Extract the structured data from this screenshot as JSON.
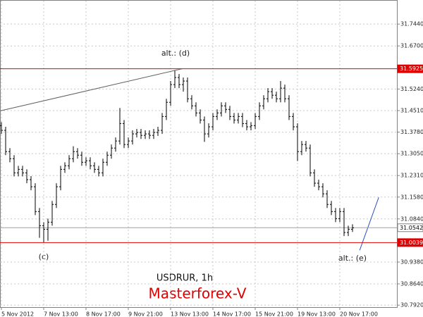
{
  "chart_data": {
    "type": "ohlc",
    "title": "USDRUR, 1h",
    "subtitle": "Masterforex-V",
    "color": "#000000",
    "grid": true,
    "ylim": [
      30.79,
      31.816
    ],
    "yticks": [
      {
        "value": 31.744,
        "label": "31.7440"
      },
      {
        "value": 31.67,
        "label": "31.6700"
      },
      {
        "value": 31.524,
        "label": "31.5240"
      },
      {
        "value": 31.451,
        "label": "31.4510"
      },
      {
        "value": 31.378,
        "label": "31.3780"
      },
      {
        "value": 31.305,
        "label": "31.3050"
      },
      {
        "value": 31.231,
        "label": "31.2310"
      },
      {
        "value": 31.158,
        "label": "31.1580"
      },
      {
        "value": 31.084,
        "label": "31.0840"
      },
      {
        "value": 30.938,
        "label": "30.9380"
      },
      {
        "value": 30.864,
        "label": "30.8640"
      },
      {
        "value": 30.792,
        "label": "30.7920"
      }
    ],
    "levels": [
      {
        "value": 31.5925,
        "color": "#e00000"
      },
      {
        "value": 31.0039,
        "color": "#e00000"
      },
      {
        "value": 31.0542,
        "color": "#a0a0a0"
      }
    ],
    "trendlines": [
      {
        "color": "#606060",
        "points": [
          [
            -0.3,
            31.45
          ],
          [
            42.7,
            31.5925
          ]
        ]
      },
      {
        "color": "#3050c0",
        "points": [
          [
            84.7,
            30.978
          ],
          [
            89.2,
            31.157
          ]
        ]
      }
    ],
    "annotations": [
      "alt.: (d)",
      "(c)",
      "alt.: (e)"
    ],
    "categories": [
      "5 Nov 2012",
      null,
      null,
      null,
      null,
      null,
      null,
      null,
      null,
      null,
      "7 Nov 13:00",
      null,
      null,
      null,
      null,
      null,
      null,
      null,
      null,
      null,
      "8 Nov 17:00",
      null,
      null,
      null,
      null,
      null,
      null,
      null,
      null,
      null,
      "9 Nov 21:00",
      null,
      null,
      null,
      null,
      null,
      null,
      null,
      null,
      null,
      "13 Nov 13:00",
      null,
      null,
      null,
      null,
      null,
      null,
      null,
      null,
      null,
      "14 Nov 17:00",
      null,
      null,
      null,
      null,
      null,
      null,
      null,
      null,
      null,
      "15 Nov 21:00",
      null,
      null,
      null,
      null,
      null,
      null,
      null,
      null,
      null,
      "19 Nov 13:00",
      null,
      null,
      null,
      null,
      null,
      null,
      null,
      null,
      null,
      "20 Nov 17:00",
      null,
      null,
      null
    ],
    "ohlc": [
      [
        31.4,
        31.412,
        31.372,
        31.384
      ],
      [
        31.384,
        31.396,
        31.3,
        31.312
      ],
      [
        31.312,
        31.324,
        31.276,
        31.288
      ],
      [
        31.288,
        31.3,
        31.228,
        31.24
      ],
      [
        31.24,
        31.264,
        31.228,
        31.252
      ],
      [
        31.252,
        31.264,
        31.228,
        31.24
      ],
      [
        31.24,
        31.252,
        31.205,
        31.217
      ],
      [
        31.217,
        31.229,
        31.181,
        31.193
      ],
      [
        31.193,
        31.205,
        31.097,
        31.109
      ],
      [
        31.109,
        31.121,
        31.02,
        31.061
      ],
      [
        31.061,
        31.073,
        31.005,
        31.049
      ],
      [
        31.049,
        31.085,
        31.01,
        31.073
      ],
      [
        31.073,
        31.145,
        31.061,
        31.133
      ],
      [
        31.133,
        31.205,
        31.121,
        31.193
      ],
      [
        31.193,
        31.264,
        31.181,
        31.252
      ],
      [
        31.252,
        31.276,
        31.24,
        31.264
      ],
      [
        31.264,
        31.3,
        31.252,
        31.288
      ],
      [
        31.288,
        31.33,
        31.276,
        31.312
      ],
      [
        31.312,
        31.324,
        31.288,
        31.3
      ],
      [
        31.3,
        31.312,
        31.264,
        31.276
      ],
      [
        31.276,
        31.293,
        31.264,
        31.281
      ],
      [
        31.281,
        31.293,
        31.252,
        31.264
      ],
      [
        31.264,
        31.276,
        31.24,
        31.252
      ],
      [
        31.252,
        31.264,
        31.228,
        31.24
      ],
      [
        31.24,
        31.288,
        31.228,
        31.276
      ],
      [
        31.276,
        31.312,
        31.264,
        31.3
      ],
      [
        31.3,
        31.336,
        31.288,
        31.324
      ],
      [
        31.324,
        31.36,
        31.312,
        31.348
      ],
      [
        31.348,
        31.46,
        31.336,
        31.407
      ],
      [
        31.407,
        31.419,
        31.324,
        31.336
      ],
      [
        31.336,
        31.36,
        31.324,
        31.348
      ],
      [
        31.348,
        31.384,
        31.336,
        31.372
      ],
      [
        31.372,
        31.389,
        31.36,
        31.377
      ],
      [
        31.377,
        31.389,
        31.355,
        31.367
      ],
      [
        31.367,
        31.384,
        31.355,
        31.372
      ],
      [
        31.372,
        31.384,
        31.355,
        31.367
      ],
      [
        31.367,
        31.389,
        31.355,
        31.377
      ],
      [
        31.377,
        31.396,
        31.365,
        31.384
      ],
      [
        31.384,
        31.443,
        31.372,
        31.431
      ],
      [
        31.431,
        31.491,
        31.419,
        31.479
      ],
      [
        31.479,
        31.551,
        31.467,
        31.539
      ],
      [
        31.539,
        31.586,
        31.527,
        31.563
      ],
      [
        31.563,
        31.575,
        31.527,
        31.539
      ],
      [
        31.539,
        31.563,
        31.515,
        31.551
      ],
      [
        31.551,
        31.563,
        31.479,
        31.491
      ],
      [
        31.491,
        31.503,
        31.455,
        31.467
      ],
      [
        31.467,
        31.479,
        31.431,
        31.443
      ],
      [
        31.443,
        31.455,
        31.407,
        31.419
      ],
      [
        31.419,
        31.431,
        31.345,
        31.372
      ],
      [
        31.372,
        31.408,
        31.36,
        31.396
      ],
      [
        31.396,
        31.443,
        31.384,
        31.431
      ],
      [
        31.431,
        31.455,
        31.419,
        31.443
      ],
      [
        31.443,
        31.479,
        31.431,
        31.467
      ],
      [
        31.467,
        31.479,
        31.443,
        31.455
      ],
      [
        31.455,
        31.467,
        31.419,
        31.431
      ],
      [
        31.431,
        31.443,
        31.407,
        31.419
      ],
      [
        31.419,
        31.443,
        31.407,
        31.431
      ],
      [
        31.431,
        31.443,
        31.395,
        31.407
      ],
      [
        31.407,
        31.419,
        31.384,
        31.396
      ],
      [
        31.396,
        31.412,
        31.384,
        31.4
      ],
      [
        31.4,
        31.443,
        31.388,
        31.431
      ],
      [
        31.431,
        31.479,
        31.419,
        31.467
      ],
      [
        31.467,
        31.503,
        31.455,
        31.491
      ],
      [
        31.491,
        31.527,
        31.479,
        31.515
      ],
      [
        31.515,
        31.527,
        31.491,
        31.503
      ],
      [
        31.503,
        31.515,
        31.479,
        31.491
      ],
      [
        31.491,
        31.551,
        31.479,
        31.527
      ],
      [
        31.527,
        31.539,
        31.479,
        31.491
      ],
      [
        31.491,
        31.503,
        31.419,
        31.431
      ],
      [
        31.431,
        31.443,
        31.384,
        31.396
      ],
      [
        31.396,
        31.408,
        31.28,
        31.312
      ],
      [
        31.312,
        31.348,
        31.3,
        31.336
      ],
      [
        31.336,
        31.348,
        31.312,
        31.324
      ],
      [
        31.324,
        31.336,
        31.228,
        31.24
      ],
      [
        31.24,
        31.252,
        31.193,
        31.205
      ],
      [
        31.205,
        31.217,
        31.181,
        31.193
      ],
      [
        31.193,
        31.205,
        31.157,
        31.169
      ],
      [
        31.169,
        31.181,
        31.121,
        31.133
      ],
      [
        31.133,
        31.145,
        31.097,
        31.109
      ],
      [
        31.109,
        31.121,
        31.073,
        31.085
      ],
      [
        31.085,
        31.121,
        31.073,
        31.109
      ],
      [
        31.109,
        31.121,
        31.026,
        31.038
      ],
      [
        31.038,
        31.061,
        31.026,
        31.049
      ],
      [
        31.049,
        31.066,
        31.04,
        31.054
      ]
    ]
  }
}
